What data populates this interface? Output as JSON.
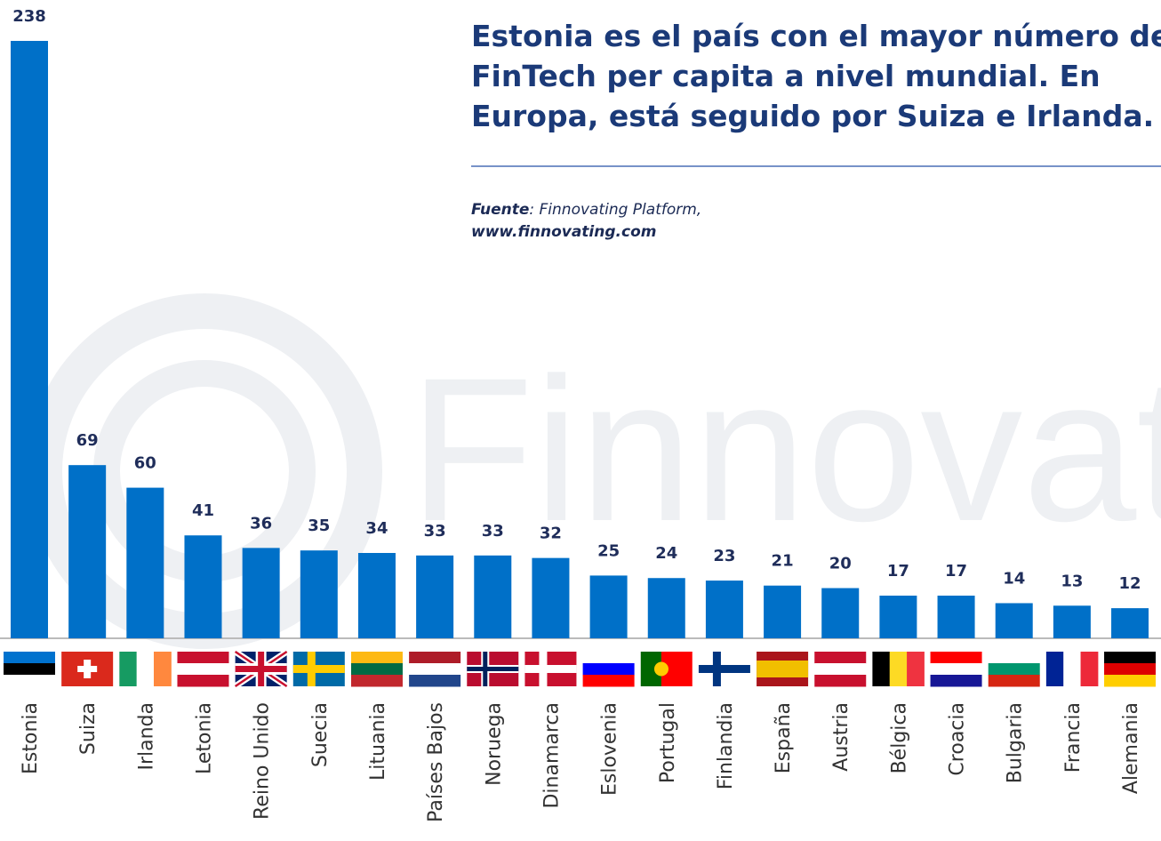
{
  "chart_data": {
    "type": "bar",
    "title": [
      "Estonia es el país con el mayor número de",
      "FinTech per capita a nivel mundial. En",
      "Europa, está seguido por Suiza e Irlanda."
    ],
    "source": {
      "label": "Fuente",
      "text": ": Finnovating Platform,",
      "url": "www.finnovating.com"
    },
    "watermark": "Finnovating",
    "categories": [
      "Estonia",
      "Suiza",
      "Irlanda",
      "Letonia",
      "Reino Unido",
      "Suecia",
      "Lituania",
      "Países Bajos",
      "Noruega",
      "Dinamarca",
      "Eslovenia",
      "Portugal",
      "Finlandia",
      "España",
      "Austria",
      "Bélgica",
      "Croacia",
      "Bulgaria",
      "Francia",
      "Alemania"
    ],
    "values": [
      238,
      69,
      60,
      41,
      36,
      35,
      34,
      33,
      33,
      32,
      25,
      24,
      23,
      21,
      20,
      17,
      17,
      14,
      13,
      12
    ],
    "color": "#0070c8"
  }
}
